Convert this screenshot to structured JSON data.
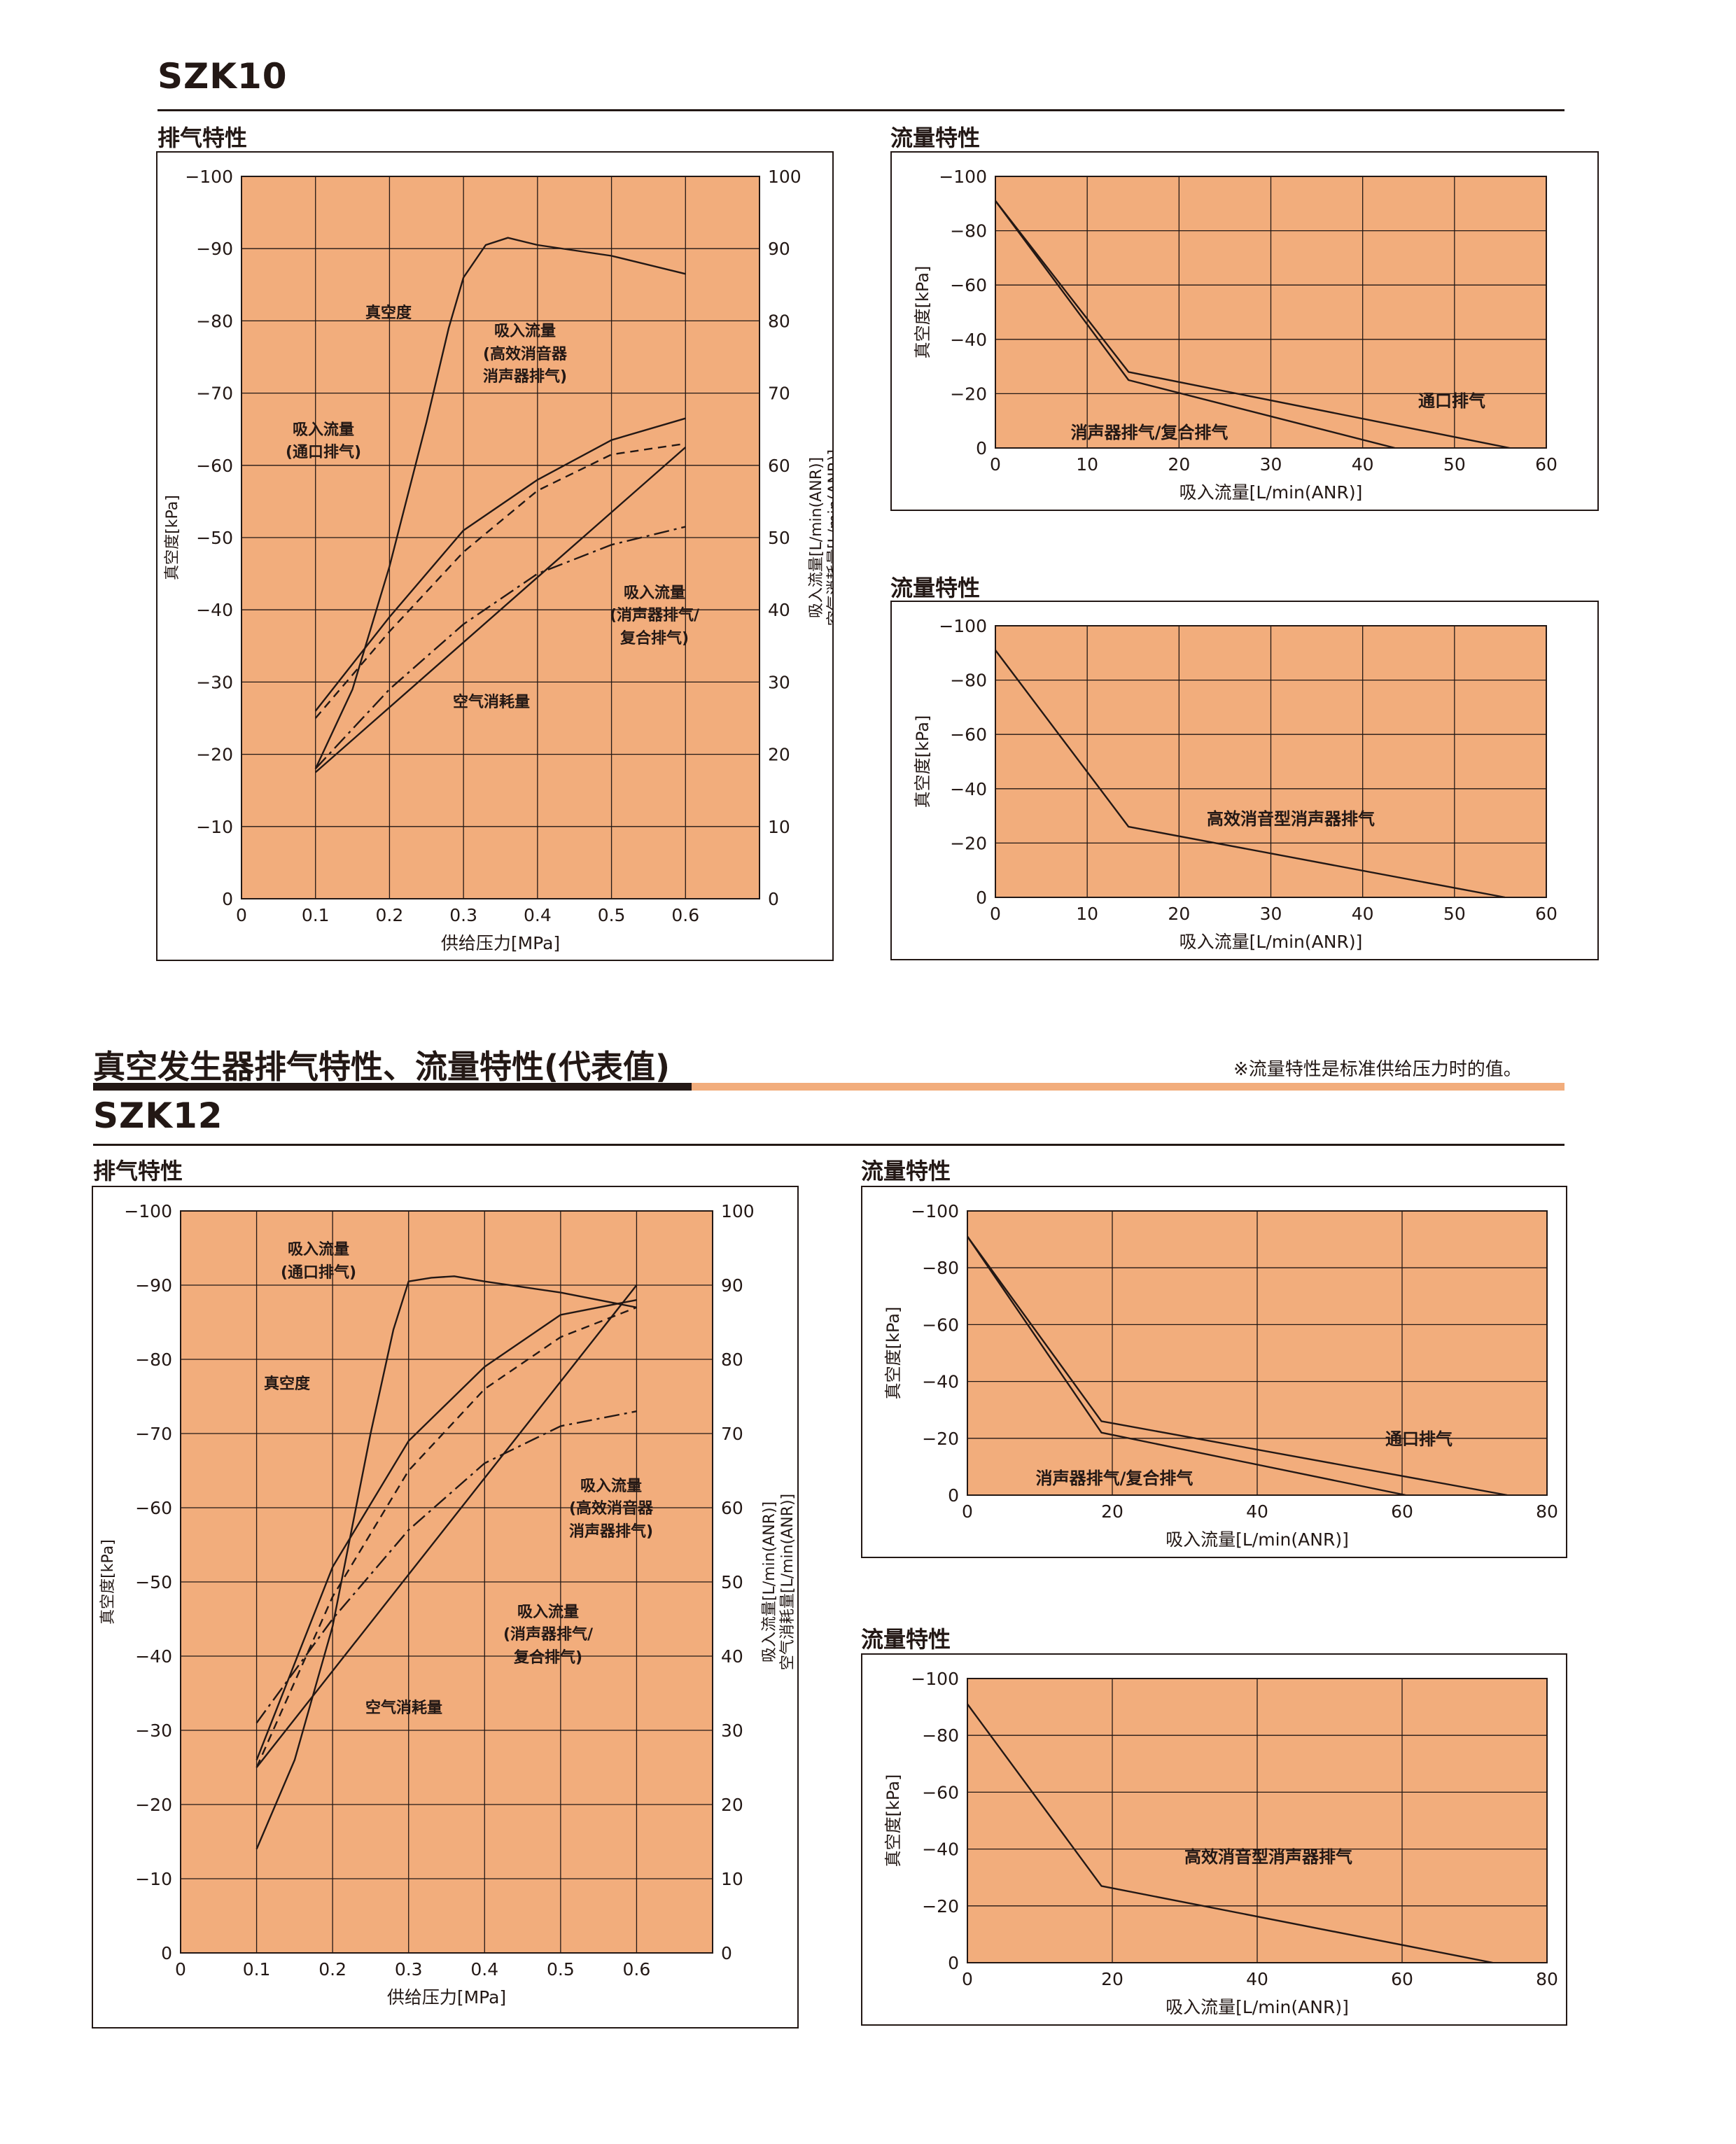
{
  "szk10": {
    "model": "SZK10",
    "exhaust_title": "排气特性",
    "flow_title_1": "流量特性",
    "flow_title_2": "流量特性"
  },
  "section": {
    "title": "真空发生器排气特性、流量特性(代表值)",
    "note": "※流量特性是标准供给压力时的值。"
  },
  "szk12": {
    "model": "SZK12",
    "exhaust_title": "排气特性",
    "flow_title_1": "流量特性",
    "flow_title_2": "流量特性"
  },
  "colors": {
    "plot_bg": "#f2ad7c",
    "grid": "#231815",
    "accent_bar": "#f2ad7c",
    "ink": "#231815"
  },
  "chart_data": [
    {
      "id": "szk10_exhaust",
      "type": "line",
      "xlabel": "供给压力[MPa]",
      "ylabel_left": "真空度[kPa]",
      "ylabel_right": [
        "吸入流量[L/min(ANR)]",
        "空气消耗量[L/min(ANR)]"
      ],
      "xlim": [
        0,
        0.7
      ],
      "ylim_left": [
        0,
        -100
      ],
      "ylim_right": [
        0,
        100
      ],
      "xticks": [
        "0",
        "0.1",
        "0.2",
        "0.3",
        "0.4",
        "0.5",
        "0.6"
      ],
      "yticks_left": [
        "0",
        "−10",
        "−20",
        "−30",
        "−40",
        "−50",
        "−60",
        "−70",
        "−80",
        "−90",
        "−100"
      ],
      "yticks_right": [
        "0",
        "10",
        "20",
        "30",
        "40",
        "50",
        "60",
        "70",
        "80",
        "90",
        "100"
      ],
      "series": [
        {
          "name": "真空度",
          "axis": "left",
          "style": "solid",
          "x": [
            0.1,
            0.15,
            0.2,
            0.25,
            0.28,
            0.3,
            0.33,
            0.36,
            0.4,
            0.5,
            0.6
          ],
          "y": [
            -18,
            -29,
            -46,
            -66,
            -79,
            -86,
            -90.5,
            -91.5,
            -90.5,
            -89,
            -86.5
          ]
        },
        {
          "name": "吸入流量(高效消音器消声器排气)",
          "axis": "right",
          "style": "dashed",
          "x": [
            0.1,
            0.2,
            0.3,
            0.4,
            0.5,
            0.6
          ],
          "y": [
            25,
            37,
            48,
            56.5,
            61.5,
            63
          ]
        },
        {
          "name": "吸入流量(通口排气)",
          "axis": "right",
          "style": "solid",
          "x": [
            0.1,
            0.2,
            0.3,
            0.4,
            0.5,
            0.6
          ],
          "y": [
            26,
            39,
            51,
            58,
            63.5,
            66.5
          ]
        },
        {
          "name": "吸入流量(消声器排气/复合排气)",
          "axis": "right",
          "style": "dashdot",
          "x": [
            0.1,
            0.2,
            0.3,
            0.4,
            0.5,
            0.6
          ],
          "y": [
            18,
            29,
            38,
            45,
            49,
            51.5
          ]
        },
        {
          "name": "空气消耗量",
          "axis": "right",
          "style": "solid",
          "x": [
            0.1,
            0.6
          ],
          "y": [
            17.5,
            62.5
          ]
        }
      ],
      "annotations": [
        "真空度",
        "吸入流量",
        "(高效消音器",
        "消声器排气)",
        "吸入流量",
        "(通口排气)",
        "吸入流量",
        "(消声器排气/",
        "复合排气)",
        "空气消耗量"
      ]
    },
    {
      "id": "szk10_flow_a",
      "type": "line",
      "xlabel": "吸入流量[L/min(ANR)]",
      "ylabel": "真空度[kPa]",
      "xlim": [
        0,
        60
      ],
      "ylim": [
        0,
        -100
      ],
      "xticks": [
        "0",
        "10",
        "20",
        "30",
        "40",
        "50",
        "60"
      ],
      "yticks": [
        "0",
        "−20",
        "−40",
        "−60",
        "−80",
        "−100"
      ],
      "series": [
        {
          "name": "通口排气",
          "x": [
            0,
            14.5,
            56
          ],
          "y": [
            -91,
            -28,
            0
          ]
        },
        {
          "name": "消声器排气/复合排气",
          "x": [
            0,
            14.5,
            43.5
          ],
          "y": [
            -91,
            -25,
            0
          ]
        }
      ],
      "annotations": [
        "通口排气",
        "消声器排气/复合排气"
      ]
    },
    {
      "id": "szk10_flow_b",
      "type": "line",
      "xlabel": "吸入流量[L/min(ANR)]",
      "ylabel": "真空度[kPa]",
      "xlim": [
        0,
        60
      ],
      "ylim": [
        0,
        -100
      ],
      "xticks": [
        "0",
        "10",
        "20",
        "30",
        "40",
        "50",
        "60"
      ],
      "yticks": [
        "0",
        "−20",
        "−40",
        "−60",
        "−80",
        "−100"
      ],
      "series": [
        {
          "name": "高效消音型消声器排气",
          "x": [
            0,
            14.5,
            55.5
          ],
          "y": [
            -91,
            -26,
            0
          ]
        }
      ],
      "annotations": [
        "高效消音型消声器排气"
      ]
    },
    {
      "id": "szk12_exhaust",
      "type": "line",
      "xlabel": "供给压力[MPa]",
      "ylabel_left": "真空度[kPa]",
      "ylabel_right": [
        "吸入流量[L/min(ANR)]",
        "空气消耗量[L/min(ANR)]"
      ],
      "xlim": [
        0,
        0.7
      ],
      "ylim_left": [
        0,
        -100
      ],
      "ylim_right": [
        0,
        100
      ],
      "xticks": [
        "0",
        "0.1",
        "0.2",
        "0.3",
        "0.4",
        "0.5",
        "0.6"
      ],
      "yticks_left": [
        "0",
        "−10",
        "−20",
        "−30",
        "−40",
        "−50",
        "−60",
        "−70",
        "−80",
        "−90",
        "−100"
      ],
      "yticks_right": [
        "0",
        "10",
        "20",
        "30",
        "40",
        "50",
        "60",
        "70",
        "80",
        "90",
        "100"
      ],
      "series": [
        {
          "name": "真空度",
          "axis": "left",
          "style": "solid",
          "x": [
            0.1,
            0.15,
            0.2,
            0.25,
            0.28,
            0.3,
            0.33,
            0.36,
            0.4,
            0.5,
            0.6
          ],
          "y": [
            -14,
            -26,
            -44,
            -70,
            -84,
            -90.5,
            -91,
            -91.2,
            -90.5,
            -89,
            -87
          ]
        },
        {
          "name": "吸入流量(通口排气)",
          "axis": "right",
          "style": "solid",
          "x": [
            0.1,
            0.2,
            0.3,
            0.4,
            0.5,
            0.6
          ],
          "y": [
            26,
            52,
            69,
            79,
            86,
            88
          ]
        },
        {
          "name": "吸入流量(高效消音器消声器排气)",
          "axis": "right",
          "style": "dashed",
          "x": [
            0.1,
            0.2,
            0.3,
            0.4,
            0.5,
            0.6
          ],
          "y": [
            25,
            48,
            65,
            76,
            83,
            87
          ]
        },
        {
          "name": "吸入流量(消声器排气/复合排气)",
          "axis": "right",
          "style": "dashdot",
          "x": [
            0.1,
            0.2,
            0.3,
            0.4,
            0.5,
            0.6
          ],
          "y": [
            31,
            45,
            57,
            66,
            71,
            73
          ]
        },
        {
          "name": "空气消耗量",
          "axis": "right",
          "style": "solid",
          "x": [
            0.1,
            0.6
          ],
          "y": [
            25,
            90
          ]
        }
      ],
      "annotations": [
        "吸入流量",
        "(通口排气)",
        "真空度",
        "吸入流量",
        "(高效消音器",
        "消声器排气)",
        "吸入流量",
        "(消声器排气/",
        "复合排气)",
        "空气消耗量"
      ]
    },
    {
      "id": "szk12_flow_a",
      "type": "line",
      "xlabel": "吸入流量[L/min(ANR)]",
      "ylabel": "真空度[kPa]",
      "xlim": [
        0,
        80
      ],
      "ylim": [
        0,
        -100
      ],
      "xticks": [
        "0",
        "20",
        "40",
        "60",
        "80"
      ],
      "yticks": [
        "0",
        "−20",
        "−40",
        "−60",
        "−80",
        "−100"
      ],
      "series": [
        {
          "name": "通口排气",
          "x": [
            0,
            18.5,
            74.5
          ],
          "y": [
            -91,
            -26,
            0
          ]
        },
        {
          "name": "消声器排气/复合排气",
          "x": [
            0,
            18.5,
            60.5
          ],
          "y": [
            -91,
            -22,
            0
          ]
        }
      ],
      "annotations": [
        "通口排气",
        "消声器排气/复合排气"
      ]
    },
    {
      "id": "szk12_flow_b",
      "type": "line",
      "xlabel": "吸入流量[L/min(ANR)]",
      "ylabel": "真空度[kPa]",
      "xlim": [
        0,
        80
      ],
      "ylim": [
        0,
        -100
      ],
      "xticks": [
        "0",
        "20",
        "40",
        "60",
        "80"
      ],
      "yticks": [
        "0",
        "−20",
        "−40",
        "−60",
        "−80",
        "−100"
      ],
      "series": [
        {
          "name": "高效消音型消声器排气",
          "x": [
            0,
            18.5,
            72.5
          ],
          "y": [
            -91,
            -27,
            0
          ]
        }
      ],
      "annotations": [
        "高效消音型消声器排气"
      ]
    }
  ]
}
